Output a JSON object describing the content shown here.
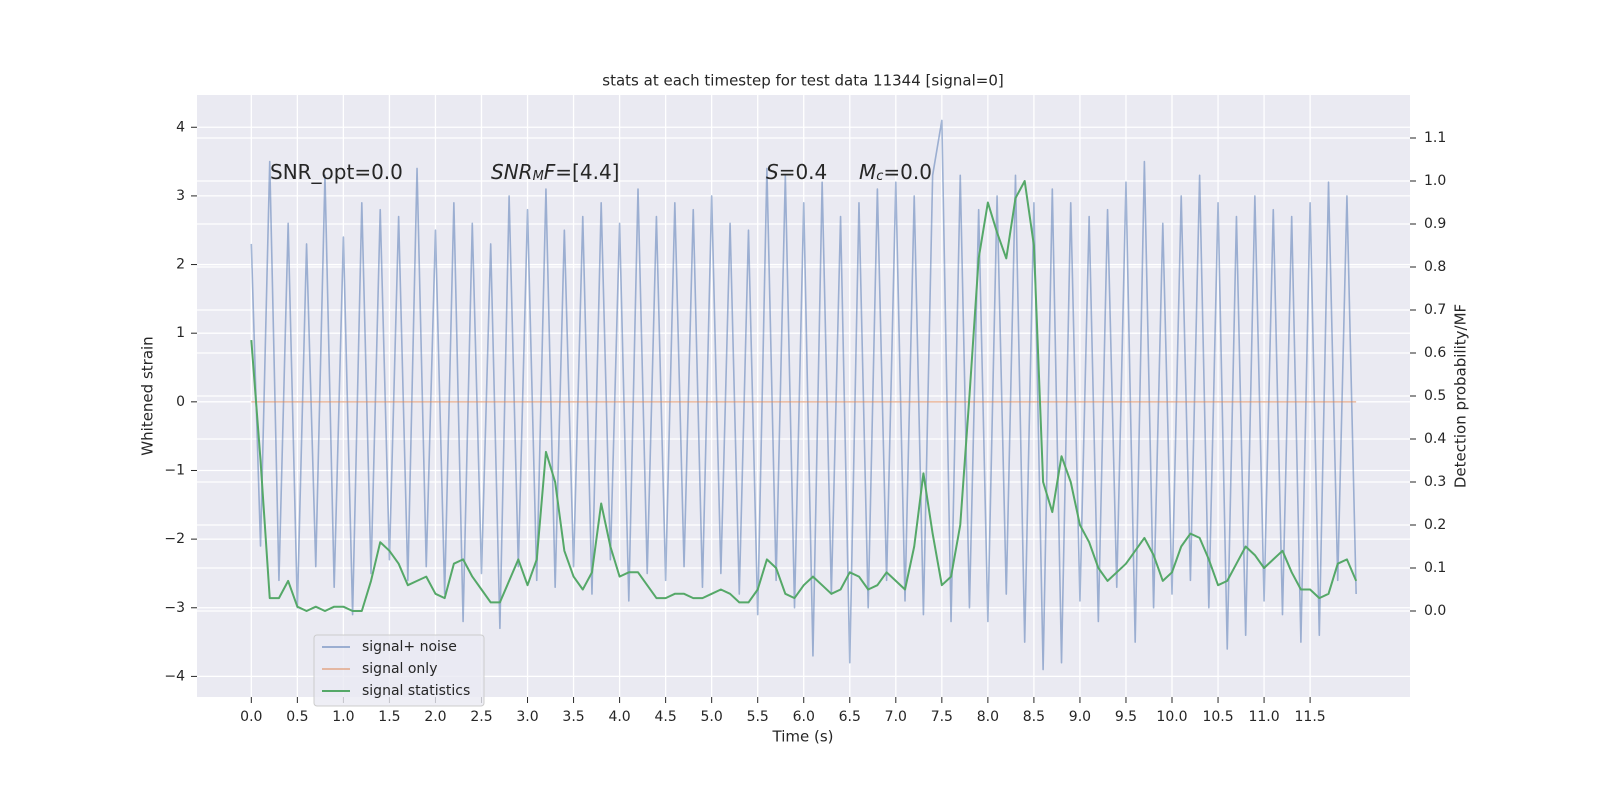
{
  "chart_data": {
    "type": "line",
    "title": "stats at each timestep for test data 11344 [signal=0]",
    "xlabel": "Time (s)",
    "ylabel": "Whitened strain",
    "y2label": "Detection probability/MF",
    "annotations": [
      [
        {
          "text": "SNR_opt=0.0",
          "style": "normal"
        }
      ],
      [
        {
          "text": "SNR",
          "style": "italic"
        },
        {
          "text": "M",
          "style": "sub"
        },
        {
          "text": "F",
          "style": "italic"
        },
        {
          "text": "=[4.4]",
          "style": "normal"
        }
      ],
      [
        {
          "text": "S",
          "style": "italic"
        },
        {
          "text": "=0.4",
          "style": "normal"
        }
      ],
      [
        {
          "text": "M",
          "style": "italic"
        },
        {
          "text": "c",
          "style": "sub"
        },
        {
          "text": "=0.0",
          "style": "normal"
        }
      ]
    ],
    "x": [
      0,
      0.1,
      0.2,
      0.3,
      0.4,
      0.5,
      0.6,
      0.7,
      0.8,
      0.9,
      1,
      1.1,
      1.2,
      1.3,
      1.4,
      1.5,
      1.6,
      1.7,
      1.8,
      1.9,
      2,
      2.1,
      2.2,
      2.3,
      2.4,
      2.5,
      2.6,
      2.7,
      2.8,
      2.9,
      3,
      3.1,
      3.2,
      3.3,
      3.4,
      3.5,
      3.6,
      3.7,
      3.8,
      3.9,
      4,
      4.1,
      4.2,
      4.3,
      4.4,
      4.5,
      4.6,
      4.7,
      4.8,
      4.9,
      5,
      5.1,
      5.2,
      5.3,
      5.4,
      5.5,
      5.6,
      5.7,
      5.8,
      5.9,
      6,
      6.1,
      6.2,
      6.3,
      6.4,
      6.5,
      6.6,
      6.7,
      6.8,
      6.9,
      7,
      7.1,
      7.2,
      7.3,
      7.4,
      7.5,
      7.6,
      7.7,
      7.8,
      7.9,
      8,
      8.1,
      8.2,
      8.3,
      8.4,
      8.5,
      8.6,
      8.7,
      8.8,
      8.9,
      9,
      9.1,
      9.2,
      9.3,
      9.4,
      9.5,
      9.6,
      9.7,
      9.8,
      9.9,
      10,
      10.1,
      10.2,
      10.3,
      10.4,
      10.5,
      10.6,
      10.7,
      10.8,
      10.9,
      11,
      11.1,
      11.2,
      11.3,
      11.4,
      11.5,
      11.6,
      11.7,
      11.8,
      11.9,
      12
    ],
    "series": [
      {
        "name": "signal+ noise",
        "color": "#4c72b0",
        "opacity": 0.5,
        "axis": "y",
        "values": [
          2.3,
          -2.1,
          3.5,
          -2.6,
          2.6,
          -3.0,
          2.3,
          -2.4,
          3.3,
          -2.7,
          2.4,
          -3.1,
          2.9,
          -2.5,
          2.8,
          -2.3,
          2.7,
          -2.6,
          3.4,
          -2.4,
          2.5,
          -2.8,
          2.9,
          -3.2,
          2.6,
          -2.5,
          2.3,
          -3.3,
          3.0,
          -2.4,
          2.8,
          -2.6,
          3.1,
          -2.7,
          2.5,
          -2.4,
          2.7,
          -2.8,
          2.9,
          -2.3,
          2.6,
          -2.9,
          3.1,
          -2.5,
          2.7,
          -2.6,
          2.9,
          -2.4,
          2.8,
          -2.7,
          3.0,
          -2.5,
          2.6,
          -2.8,
          2.5,
          -3.1,
          3.4,
          -2.6,
          3.3,
          -3.0,
          2.9,
          -3.7,
          3.2,
          -2.8,
          2.7,
          -3.8,
          2.9,
          -3.0,
          3.1,
          -2.6,
          3.2,
          -2.9,
          3.0,
          -3.1,
          3.3,
          4.1,
          -3.2,
          3.3,
          -3.0,
          2.8,
          -3.2,
          3.0,
          -2.8,
          3.3,
          -3.5,
          2.9,
          -3.9,
          3.1,
          -3.8,
          2.9,
          -2.9,
          2.7,
          -3.2,
          2.8,
          -2.7,
          3.2,
          -3.5,
          3.5,
          -3.0,
          2.6,
          -2.8,
          3.0,
          -2.6,
          3.3,
          -3.0,
          2.9,
          -3.6,
          2.7,
          -3.4,
          3.0,
          -2.9,
          2.8,
          -3.1,
          2.7,
          -3.5,
          2.9,
          -3.4,
          3.2,
          -2.6,
          3.0,
          -2.8
        ]
      },
      {
        "name": "signal only",
        "color": "#dd8452",
        "opacity": 0.5,
        "axis": "y",
        "values": [
          0,
          0,
          0,
          0,
          0,
          0,
          0,
          0,
          0,
          0,
          0,
          0,
          0,
          0,
          0,
          0,
          0,
          0,
          0,
          0,
          0,
          0,
          0,
          0,
          0,
          0,
          0,
          0,
          0,
          0,
          0,
          0,
          0,
          0,
          0,
          0,
          0,
          0,
          0,
          0,
          0,
          0,
          0,
          0,
          0,
          0,
          0,
          0,
          0,
          0,
          0,
          0,
          0,
          0,
          0,
          0,
          0,
          0,
          0,
          0,
          0,
          0,
          0,
          0,
          0,
          0,
          0,
          0,
          0,
          0,
          0,
          0,
          0,
          0,
          0,
          0,
          0,
          0,
          0,
          0,
          0,
          0,
          0,
          0,
          0,
          0,
          0,
          0,
          0,
          0,
          0,
          0,
          0,
          0,
          0,
          0,
          0,
          0,
          0,
          0,
          0,
          0,
          0,
          0,
          0,
          0,
          0,
          0,
          0,
          0,
          0,
          0,
          0,
          0,
          0,
          0,
          0,
          0,
          0,
          0,
          0
        ]
      },
      {
        "name": "signal statistics",
        "color": "#55a868",
        "opacity": 1,
        "axis": "y2",
        "values": [
          0.63,
          0.35,
          0.03,
          0.03,
          0.07,
          0.01,
          0,
          0.01,
          0,
          0.01,
          0.01,
          0,
          0,
          0.07,
          0.16,
          0.14,
          0.11,
          0.06,
          0.07,
          0.08,
          0.04,
          0.03,
          0.11,
          0.12,
          0.08,
          0.05,
          0.02,
          0.02,
          0.07,
          0.12,
          0.06,
          0.12,
          0.37,
          0.3,
          0.14,
          0.08,
          0.05,
          0.09,
          0.25,
          0.15,
          0.08,
          0.09,
          0.09,
          0.06,
          0.03,
          0.03,
          0.04,
          0.04,
          0.03,
          0.03,
          0.04,
          0.05,
          0.04,
          0.02,
          0.02,
          0.05,
          0.12,
          0.1,
          0.04,
          0.03,
          0.06,
          0.08,
          0.06,
          0.04,
          0.05,
          0.09,
          0.08,
          0.05,
          0.06,
          0.09,
          0.07,
          0.05,
          0.15,
          0.32,
          0.18,
          0.06,
          0.08,
          0.2,
          0.5,
          0.82,
          0.95,
          0.88,
          0.82,
          0.96,
          1.0,
          0.85,
          0.3,
          0.23,
          0.36,
          0.3,
          0.2,
          0.16,
          0.1,
          0.07,
          0.09,
          0.11,
          0.14,
          0.17,
          0.13,
          0.07,
          0.09,
          0.15,
          0.18,
          0.17,
          0.12,
          0.06,
          0.07,
          0.11,
          0.15,
          0.13,
          0.1,
          0.12,
          0.14,
          0.09,
          0.05,
          0.05,
          0.03,
          0.04,
          0.11,
          0.12,
          0.07
        ]
      }
    ],
    "xlim": [
      -0.59,
      12.585
    ],
    "xticks": [
      {
        "value": 0,
        "label": "0.0"
      },
      {
        "value": 0.5,
        "label": "0.5"
      },
      {
        "value": 1,
        "label": "1.0"
      },
      {
        "value": 1.5,
        "label": "1.5"
      },
      {
        "value": 2,
        "label": "2.0"
      },
      {
        "value": 2.5,
        "label": "2.5"
      },
      {
        "value": 3,
        "label": "3.0"
      },
      {
        "value": 3.5,
        "label": "3.5"
      },
      {
        "value": 4,
        "label": "4.0"
      },
      {
        "value": 4.5,
        "label": "4.5"
      },
      {
        "value": 5,
        "label": "5.0"
      },
      {
        "value": 5.5,
        "label": "5.5"
      },
      {
        "value": 6,
        "label": "6.0"
      },
      {
        "value": 6.5,
        "label": "6.5"
      },
      {
        "value": 7,
        "label": "7.0"
      },
      {
        "value": 7.5,
        "label": "7.5"
      },
      {
        "value": 8,
        "label": "8.0"
      },
      {
        "value": 8.5,
        "label": "8.5"
      },
      {
        "value": 9,
        "label": "9.0"
      },
      {
        "value": 9.5,
        "label": "9.5"
      },
      {
        "value": 10,
        "label": "10.0"
      },
      {
        "value": 10.5,
        "label": "10.5"
      },
      {
        "value": 11,
        "label": "11.0"
      },
      {
        "value": 11.5,
        "label": "11.5"
      }
    ],
    "ylim": [
      -4.3,
      4.47
    ],
    "yticks": [
      {
        "value": -4,
        "label": "−4"
      },
      {
        "value": -3,
        "label": "−3"
      },
      {
        "value": -2,
        "label": "−2"
      },
      {
        "value": -1,
        "label": "−1"
      },
      0,
      1,
      2,
      3,
      4
    ],
    "y2lim": [
      -0.2,
      1.2
    ],
    "y2ticks": [
      {
        "value": 0,
        "label": "0.0"
      },
      {
        "value": 0.1,
        "label": "0.1"
      },
      {
        "value": 0.2,
        "label": "0.2"
      },
      {
        "value": 0.3,
        "label": "0.3"
      },
      {
        "value": 0.4,
        "label": "0.4"
      },
      {
        "value": 0.5,
        "label": "0.5"
      },
      {
        "value": 0.6,
        "label": "0.6"
      },
      {
        "value": 0.7,
        "label": "0.7"
      },
      {
        "value": 0.8,
        "label": "0.8"
      },
      {
        "value": 0.9,
        "label": "0.9"
      },
      {
        "value": 1,
        "label": "1.0"
      },
      {
        "value": 1.1,
        "label": "1.1"
      }
    ],
    "grid": true,
    "legend": "lower left"
  }
}
